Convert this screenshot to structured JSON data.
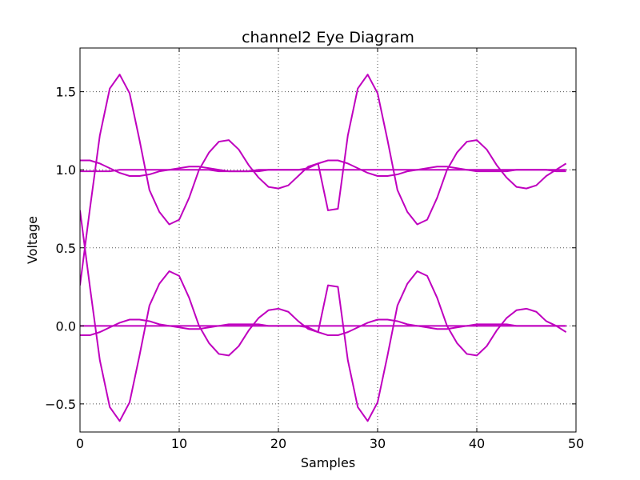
{
  "chart_data": {
    "type": "line",
    "title": "channel2 Eye Diagram",
    "xlabel": "Samples",
    "ylabel": "Voltage",
    "xlim": [
      0,
      50
    ],
    "ylim": [
      -0.68,
      1.78
    ],
    "xticks": [
      0,
      10,
      20,
      30,
      40,
      50
    ],
    "xtick_labels": [
      "0",
      "10",
      "20",
      "30",
      "40",
      "50"
    ],
    "yticks": [
      -0.5,
      0.0,
      0.5,
      1.0,
      1.5
    ],
    "ytick_labels": [
      "−0.5",
      "0.0",
      "0.5",
      "1.0",
      "1.5"
    ],
    "grid": true,
    "line_color": "#bf00bf",
    "x": [
      0,
      1,
      2,
      3,
      4,
      5,
      6,
      7,
      8,
      9,
      10,
      11,
      12,
      13,
      14,
      15,
      16,
      17,
      18,
      19,
      20,
      21,
      22,
      23,
      24,
      25,
      26,
      27,
      28,
      29,
      30,
      31,
      32,
      33,
      34,
      35,
      36,
      37,
      38,
      39,
      40,
      41,
      42,
      43,
      44,
      45,
      46,
      47,
      48,
      49
    ],
    "series": [
      {
        "values": [
          0.26,
          0.75,
          1.22,
          1.52,
          1.61,
          1.49,
          1.19,
          0.87,
          0.73,
          0.65,
          0.68,
          0.82,
          1.0,
          1.11,
          1.18,
          1.19,
          1.13,
          1.03,
          0.95,
          0.89,
          0.88,
          0.9,
          0.96,
          1.02,
          1.04,
          0.74,
          0.75,
          1.22,
          1.52,
          1.61,
          1.49,
          1.19,
          0.87,
          0.73,
          0.65,
          0.68,
          0.82,
          1.0,
          1.11,
          1.18,
          1.19,
          1.13,
          1.03,
          0.95,
          0.89,
          0.88,
          0.9,
          0.96,
          1.0,
          1.04
        ]
      },
      {
        "values": [
          0.74,
          0.25,
          -0.22,
          -0.52,
          -0.61,
          -0.49,
          -0.19,
          0.13,
          0.27,
          0.35,
          0.32,
          0.18,
          0.0,
          -0.11,
          -0.18,
          -0.19,
          -0.13,
          -0.03,
          0.05,
          0.1,
          0.11,
          0.09,
          0.03,
          -0.02,
          -0.04,
          0.26,
          0.25,
          -0.22,
          -0.52,
          -0.61,
          -0.49,
          -0.19,
          0.13,
          0.27,
          0.35,
          0.32,
          0.18,
          0.0,
          -0.11,
          -0.18,
          -0.19,
          -0.13,
          -0.03,
          0.05,
          0.1,
          0.11,
          0.09,
          0.03,
          0.0,
          -0.04
        ]
      },
      {
        "values": [
          1.06,
          1.06,
          1.04,
          1.01,
          0.98,
          0.96,
          0.96,
          0.97,
          0.99,
          1.0,
          1.01,
          1.02,
          1.02,
          1.01,
          1.0,
          0.99,
          0.99,
          0.99,
          0.99,
          1.0,
          1.0,
          1.0,
          1.0,
          1.01,
          1.04,
          1.06,
          1.06,
          1.04,
          1.01,
          0.98,
          0.96,
          0.96,
          0.97,
          0.99,
          1.0,
          1.01,
          1.02,
          1.02,
          1.01,
          1.0,
          0.99,
          0.99,
          0.99,
          0.99,
          1.0,
          1.0,
          1.0,
          1.0,
          1.0,
          1.0
        ]
      },
      {
        "values": [
          -0.06,
          -0.06,
          -0.04,
          -0.01,
          0.02,
          0.04,
          0.04,
          0.03,
          0.01,
          0.0,
          -0.01,
          -0.02,
          -0.02,
          -0.01,
          0.0,
          0.01,
          0.01,
          0.01,
          0.01,
          0.0,
          0.0,
          0.0,
          0.0,
          -0.01,
          -0.04,
          -0.06,
          -0.06,
          -0.04,
          -0.01,
          0.02,
          0.04,
          0.04,
          0.03,
          0.01,
          0.0,
          -0.01,
          -0.02,
          -0.02,
          -0.01,
          0.0,
          0.01,
          0.01,
          0.01,
          0.01,
          0.0,
          0.0,
          0.0,
          0.0,
          0.0,
          0.0
        ]
      },
      {
        "values": [
          0.99,
          0.99,
          0.99,
          0.99,
          1.0,
          1.0,
          1.0,
          1.0,
          1.0,
          1.0,
          1.0,
          1.0,
          1.0,
          1.0,
          0.99,
          0.99,
          0.99,
          0.99,
          1.0,
          1.0,
          1.0,
          1.0,
          1.0,
          1.0,
          1.0,
          1.0,
          1.0,
          1.0,
          1.0,
          1.0,
          1.0,
          1.0,
          1.0,
          1.0,
          1.0,
          1.0,
          1.0,
          1.0,
          1.0,
          1.0,
          1.0,
          1.0,
          1.0,
          1.0,
          1.0,
          1.0,
          1.0,
          1.0,
          0.99,
          0.99
        ]
      },
      {
        "values": [
          0.0,
          0.0,
          0.0,
          0.0,
          0.0,
          0.0,
          0.0,
          0.0,
          0.0,
          0.0,
          0.0,
          0.0,
          0.0,
          0.0,
          0.0,
          0.0,
          0.0,
          0.0,
          0.0,
          0.0,
          0.0,
          0.0,
          0.0,
          0.0,
          0.0,
          0.0,
          0.0,
          0.0,
          0.0,
          0.0,
          0.0,
          0.0,
          0.0,
          0.0,
          0.0,
          0.0,
          0.0,
          0.0,
          0.0,
          0.0,
          0.0,
          0.0,
          0.0,
          0.0,
          0.0,
          0.0,
          0.0,
          0.0,
          0.0,
          0.0
        ]
      }
    ]
  }
}
